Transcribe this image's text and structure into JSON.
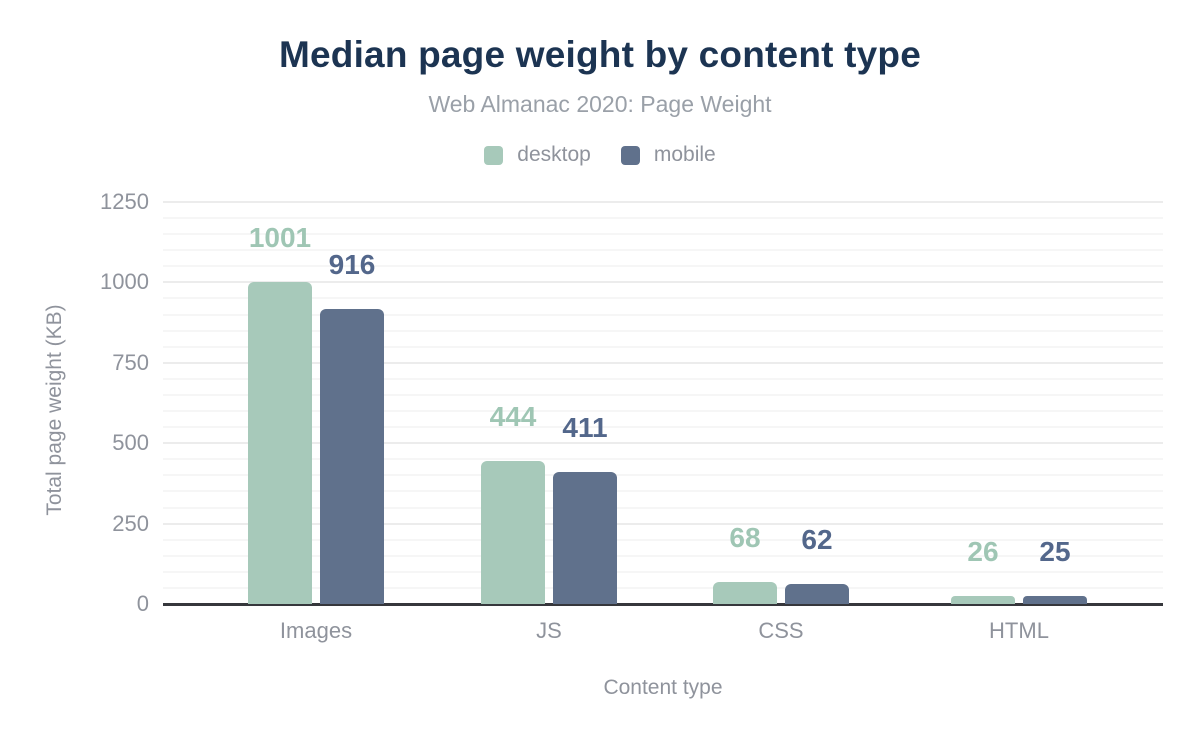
{
  "figure": {
    "title": "Median page weight by content type",
    "subtitle": "Web Almanac 2020: Page Weight"
  },
  "legend": {
    "items": [
      {
        "label": "desktop",
        "color": "#a7c9ba"
      },
      {
        "label": "mobile",
        "color": "#60718c"
      }
    ]
  },
  "axes": {
    "y_label": "Total page weight (KB)",
    "x_label": "Content type",
    "y_ticks": [
      0,
      250,
      500,
      750,
      1000,
      1250
    ],
    "y_max": 1250,
    "minor_step": 50,
    "major_step": 250
  },
  "colors": {
    "title": "#1c3452",
    "subtitle": "#9aa0a8",
    "muted_text": "#8f939c",
    "axis_line": "#36373c",
    "gridline_minor": "#f6f6f6",
    "gridline_major": "#ececec",
    "background": "#ffffff"
  },
  "chart_data": {
    "type": "bar",
    "title": "Median page weight by content type",
    "subtitle": "Web Almanac 2020: Page Weight",
    "categories": [
      "Images",
      "JS",
      "CSS",
      "HTML"
    ],
    "series": [
      {
        "name": "desktop",
        "color": "#a7c9ba",
        "label_color": "#9fc6b4",
        "values": [
          1001,
          444,
          68,
          26
        ]
      },
      {
        "name": "mobile",
        "color": "#60718c",
        "label_color": "#53678b",
        "values": [
          916,
          411,
          62,
          25
        ]
      }
    ],
    "xlabel": "Content type",
    "ylabel": "Total page weight (KB)",
    "ylim": [
      0,
      1250
    ],
    "grid": "horizontal, minor every 50, major every 250",
    "legend_position": "top",
    "data_labels": "above bars, colored per series"
  }
}
